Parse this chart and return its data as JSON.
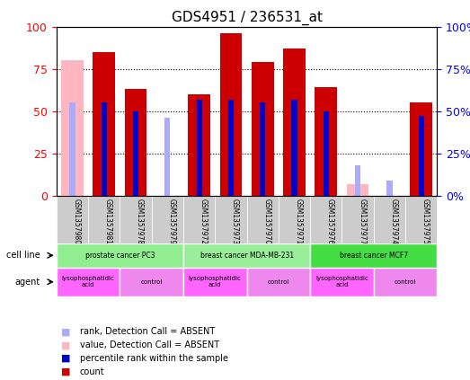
{
  "title": "GDS4951 / 236531_at",
  "samples": [
    "GSM1357980",
    "GSM1357981",
    "GSM1357978",
    "GSM1357979",
    "GSM1357972",
    "GSM1357973",
    "GSM1357970",
    "GSM1357971",
    "GSM1357976",
    "GSM1357977",
    "GSM1357974",
    "GSM1357975"
  ],
  "count_values": [
    null,
    85,
    63,
    null,
    60,
    96,
    79,
    87,
    64,
    null,
    null,
    55
  ],
  "count_absent": [
    80,
    null,
    null,
    null,
    null,
    null,
    null,
    null,
    null,
    7,
    null,
    null
  ],
  "rank_values": [
    null,
    55,
    50,
    null,
    57,
    57,
    55,
    57,
    50,
    null,
    null,
    47
  ],
  "rank_absent": [
    55,
    null,
    null,
    46,
    null,
    null,
    null,
    null,
    null,
    18,
    9,
    null
  ],
  "cell_lines": [
    {
      "label": "prostate cancer PC3",
      "start": 0,
      "end": 4,
      "color": "#90EE90"
    },
    {
      "label": "breast cancer MDA-MB-231",
      "start": 4,
      "end": 8,
      "color": "#90EE90"
    },
    {
      "label": "breast cancer MCF7",
      "start": 8,
      "end": 12,
      "color": "#00DD00"
    }
  ],
  "agents": [
    {
      "label": "lysophosphatidic\nacid",
      "start": 0,
      "end": 2,
      "color": "#FF77FF"
    },
    {
      "label": "control",
      "start": 2,
      "end": 4,
      "color": "#FF77FF"
    },
    {
      "label": "lysophosphatidic\nacid",
      "start": 4,
      "end": 6,
      "color": "#FF77FF"
    },
    {
      "label": "control",
      "start": 6,
      "end": 8,
      "color": "#FF77FF"
    },
    {
      "label": "lysophosphatidic\nacid",
      "start": 8,
      "end": 10,
      "color": "#FF77FF"
    },
    {
      "label": "control",
      "start": 10,
      "end": 12,
      "color": "#FF77FF"
    }
  ],
  "count_color": "#CC0000",
  "count_absent_color": "#FFB6C1",
  "rank_color": "#0000CC",
  "rank_absent_color": "#AAAAFF",
  "bar_width": 0.35,
  "ylim": [
    0,
    100
  ],
  "yticks": [
    0,
    25,
    50,
    75,
    100
  ],
  "grid_color": "#000000",
  "cell_line_colors": [
    "#90EE90",
    "#90EE90",
    "#00DD00"
  ],
  "agent_lysophosphatidic_color": "#FF77FF",
  "agent_control_color": "#FF77FF",
  "sample_bg_color": "#CCCCCC"
}
